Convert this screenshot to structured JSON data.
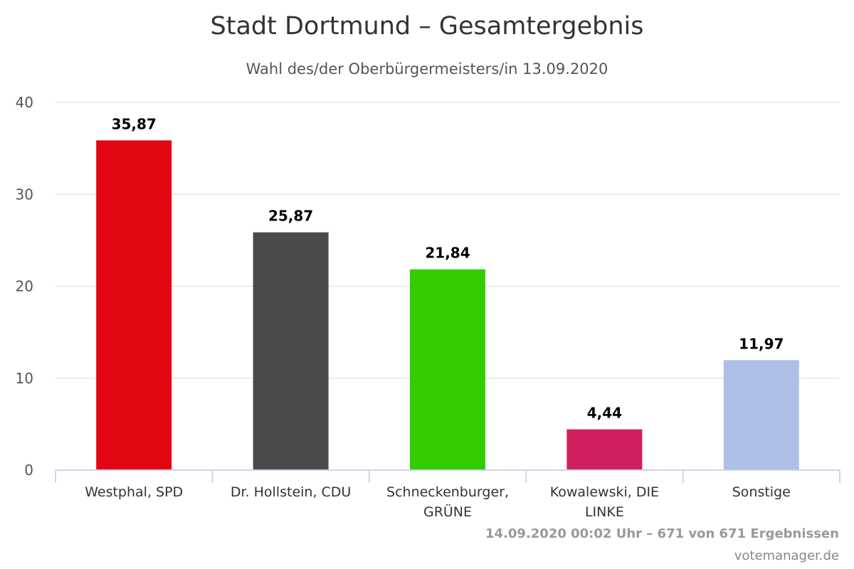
{
  "chart_data": {
    "type": "bar",
    "title": "Stadt Dortmund – Gesamtergebnis",
    "subtitle": "Wahl des/der Oberbürgermeisters/in 13.09.2020",
    "categories": [
      [
        "Westphal, SPD"
      ],
      [
        "Dr. Hollstein, CDU"
      ],
      [
        "Schneckenburger,",
        "GRÜNE"
      ],
      [
        "Kowalewski, DIE",
        "LINKE"
      ],
      [
        "Sonstige"
      ]
    ],
    "values": [
      35.87,
      25.87,
      21.84,
      4.44,
      11.97
    ],
    "value_labels": [
      "35,87",
      "25,87",
      "21,84",
      "4,44",
      "11,97"
    ],
    "colors": [
      "#e30613",
      "#4a4a4a",
      "#33cc00",
      "#d01f5e",
      "#adbfe6"
    ],
    "ylim": [
      0,
      40
    ],
    "yticks": [
      0,
      10,
      20,
      30,
      40
    ],
    "grid": true,
    "legend": "none",
    "credits": {
      "timestamp": "14.09.2020 00:02 Uhr – 671 von 671 Ergebnissen",
      "source": "votemanager.de"
    }
  }
}
